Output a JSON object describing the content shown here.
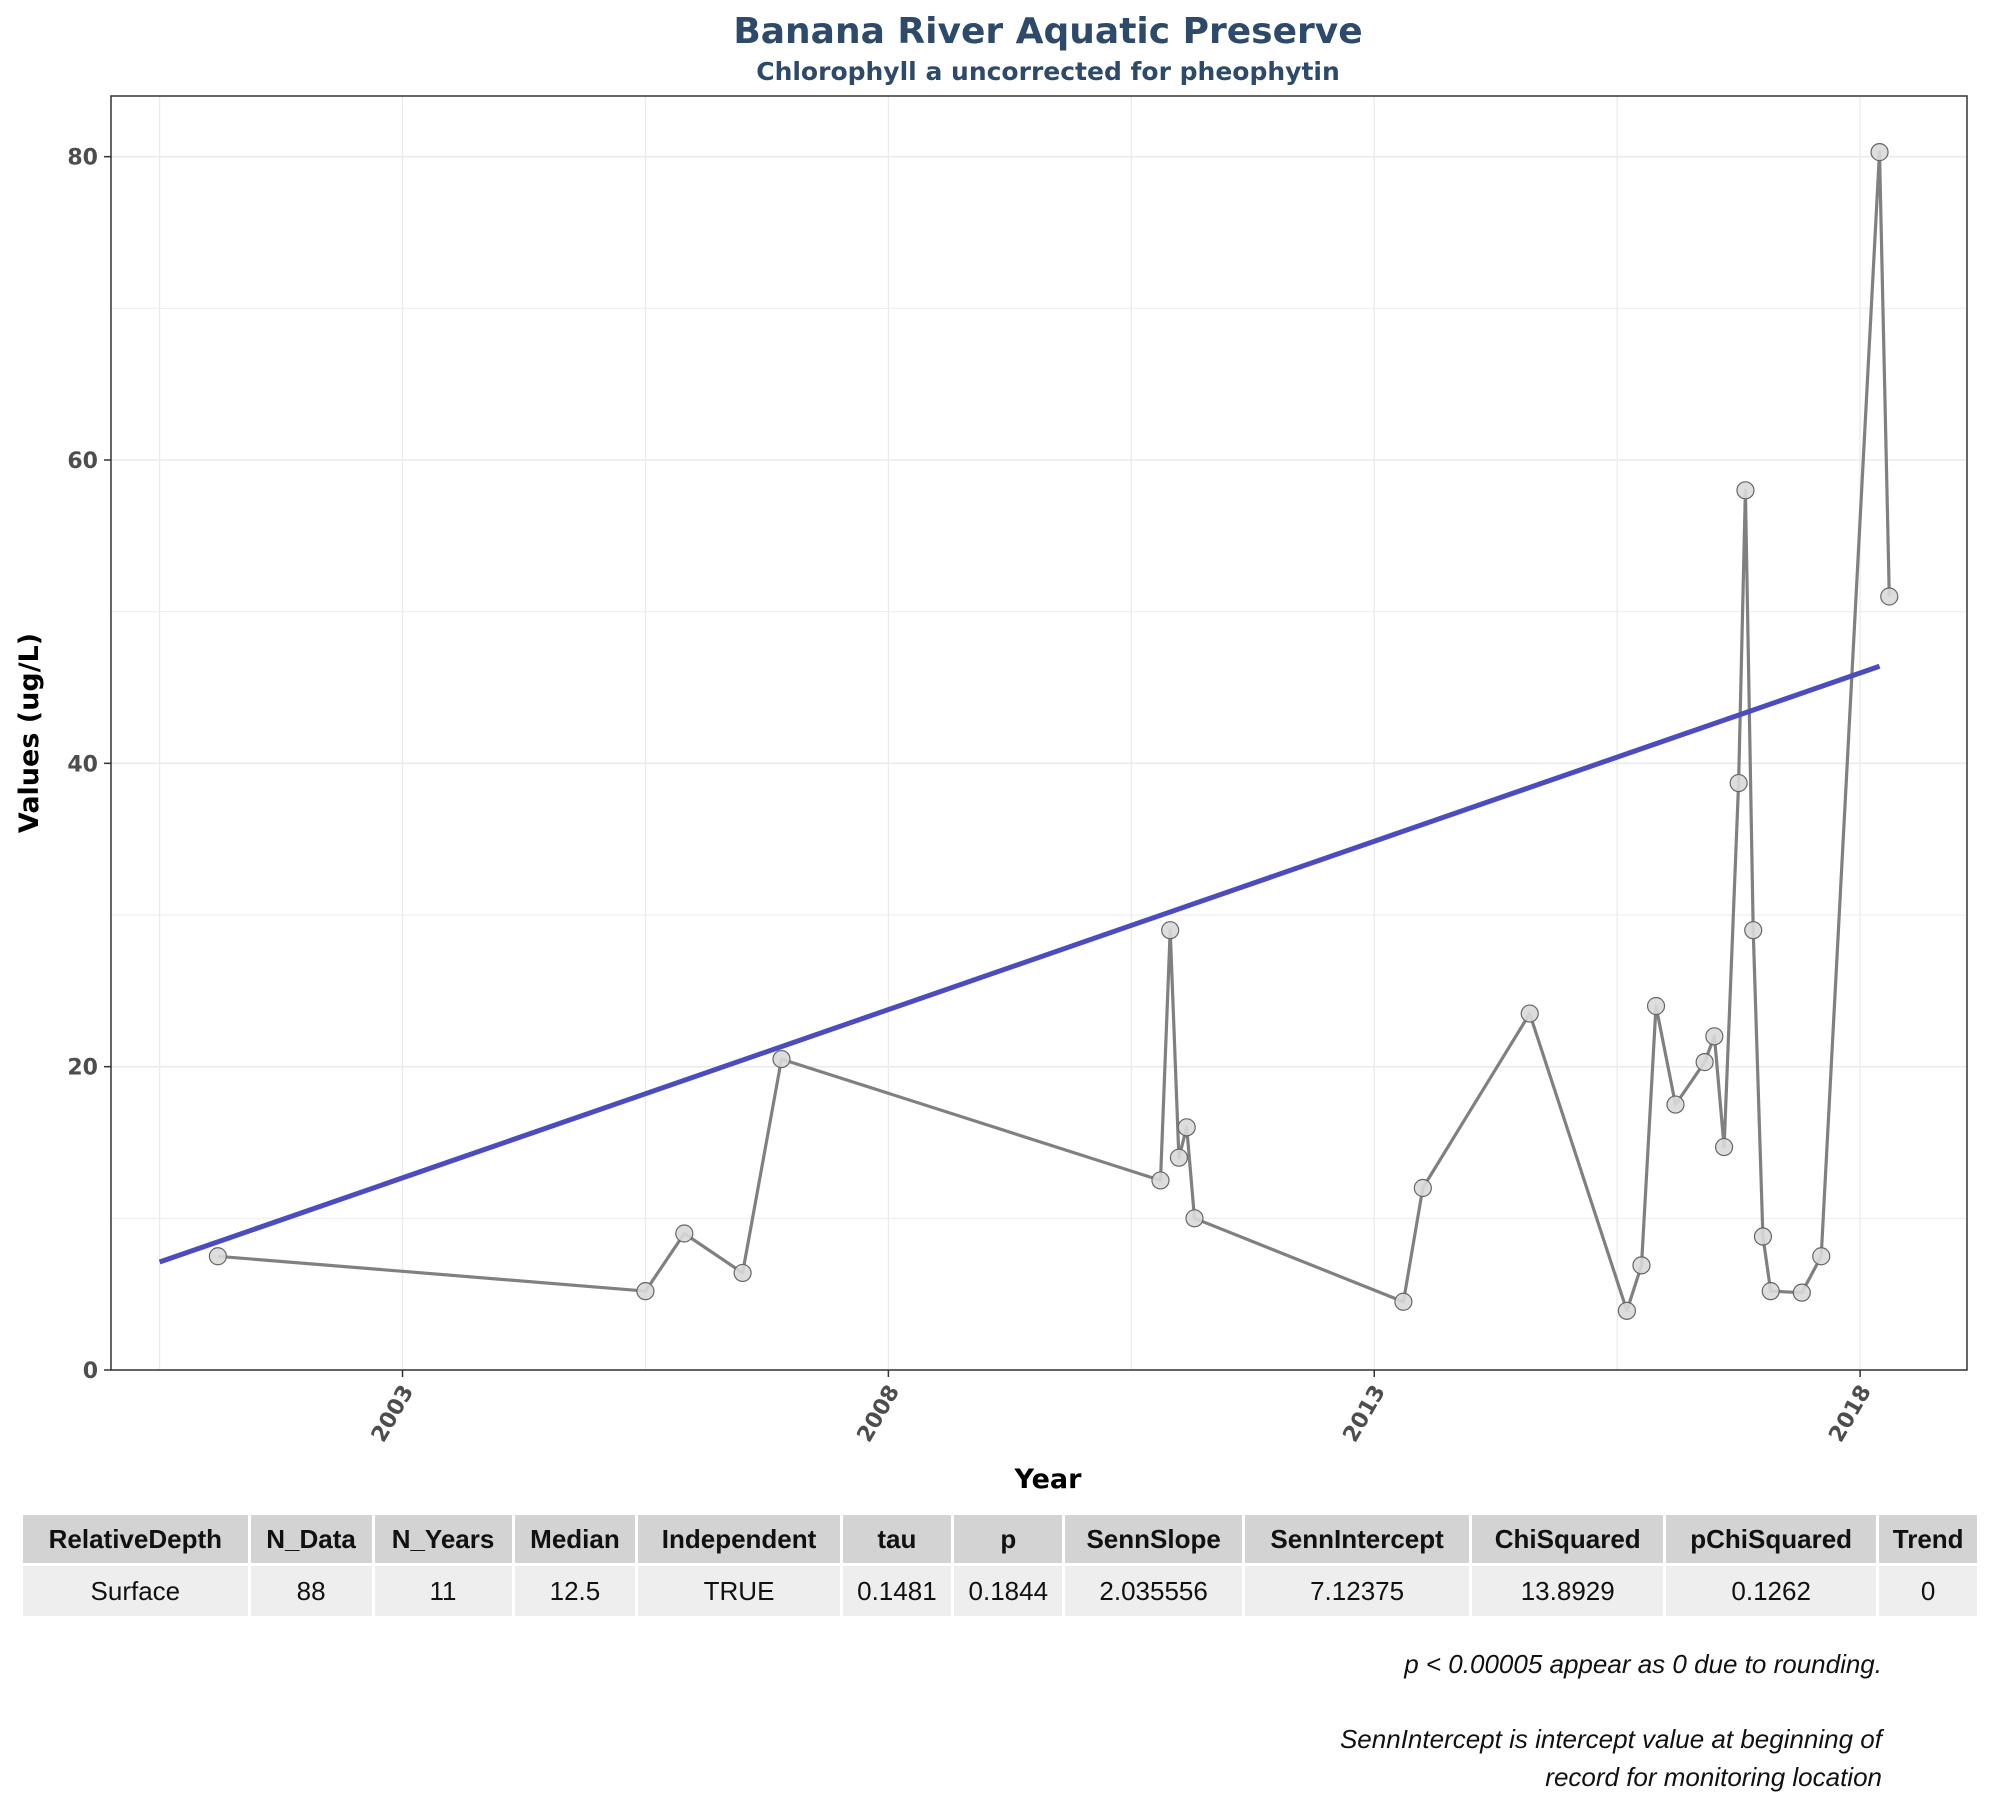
{
  "chart_data": {
    "type": "line",
    "title": "Banana River Aquatic Preserve",
    "subtitle": "Chlorophyll a uncorrected for pheophytin",
    "xlabel": "Year",
    "ylabel": "Values (ug/L)",
    "xlim": [
      2000.0,
      2019.1
    ],
    "ylim": [
      0,
      84
    ],
    "x_ticks": [
      2003,
      2008,
      2013,
      2018
    ],
    "y_ticks": [
      0,
      20,
      40,
      60,
      80
    ],
    "grid": true,
    "series": [
      {
        "color": "#808080",
        "points": [
          {
            "x": 2001.1,
            "y": 7.5
          },
          {
            "x": 2005.5,
            "y": 5.2
          },
          {
            "x": 2005.9,
            "y": 9.0
          },
          {
            "x": 2006.5,
            "y": 6.4
          },
          {
            "x": 2006.9,
            "y": 20.5
          },
          {
            "x": 2010.8,
            "y": 12.5
          },
          {
            "x": 2010.9,
            "y": 29.0
          },
          {
            "x": 2010.99,
            "y": 14.0
          },
          {
            "x": 2011.07,
            "y": 16.0
          },
          {
            "x": 2011.15,
            "y": 10.0
          },
          {
            "x": 2013.3,
            "y": 4.5
          },
          {
            "x": 2013.5,
            "y": 12.0
          },
          {
            "x": 2014.6,
            "y": 23.5
          },
          {
            "x": 2015.6,
            "y": 3.9
          },
          {
            "x": 2015.75,
            "y": 6.9
          },
          {
            "x": 2015.9,
            "y": 24.0
          },
          {
            "x": 2016.1,
            "y": 17.5
          },
          {
            "x": 2016.4,
            "y": 20.3
          },
          {
            "x": 2016.5,
            "y": 22.0
          },
          {
            "x": 2016.6,
            "y": 14.7
          },
          {
            "x": 2016.75,
            "y": 38.7
          },
          {
            "x": 2016.82,
            "y": 58.0
          },
          {
            "x": 2016.9,
            "y": 29.0
          },
          {
            "x": 2017.0,
            "y": 8.8
          },
          {
            "x": 2017.08,
            "y": 5.2
          },
          {
            "x": 2017.4,
            "y": 5.1
          },
          {
            "x": 2017.6,
            "y": 7.5
          },
          {
            "x": 2018.2,
            "y": 80.3
          },
          {
            "x": 2018.3,
            "y": 51.0
          }
        ]
      },
      {
        "color": "#4c4cbf",
        "points": [
          {
            "x": 2000.5,
            "y": 7.12
          },
          {
            "x": 2018.2,
            "y": 46.4
          }
        ]
      }
    ]
  },
  "table": {
    "headers": [
      "RelativeDepth",
      "N_Data",
      "N_Years",
      "Median",
      "Independent",
      "tau",
      "p",
      "SennSlope",
      "SennIntercept",
      "ChiSquared",
      "pChiSquared",
      "Trend"
    ],
    "rows": [
      [
        "Surface",
        "88",
        "11",
        "12.5",
        "TRUE",
        "0.1481",
        "0.1844",
        "2.035556",
        "7.12375",
        "13.8929",
        "0.1262",
        "0"
      ]
    ]
  },
  "notes": {
    "rounding": "p < 0.00005 appear as 0 due to rounding.",
    "intercept_line1": "SennIntercept is intercept value at beginning of",
    "intercept_line2": "record for monitoring location"
  }
}
